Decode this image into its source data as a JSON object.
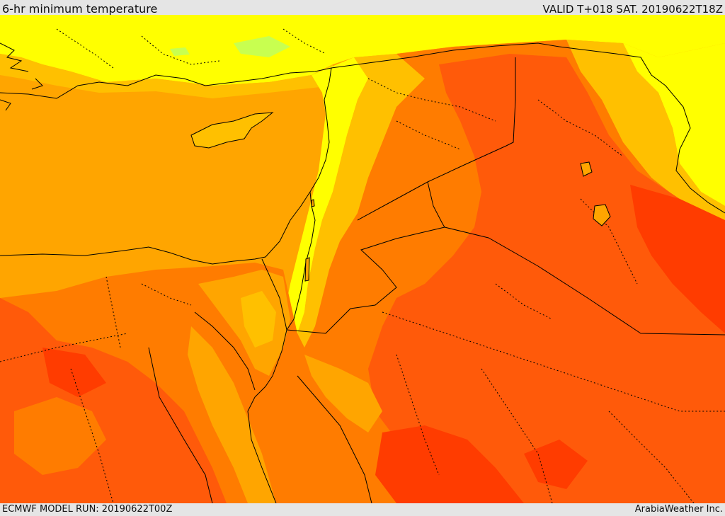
{
  "header": {
    "title": "6-hr minimum temperature",
    "valid": "VALID T+018 SAT. 20190622T18Z"
  },
  "footer": {
    "model_run": "ECMWF MODEL RUN: 20190622T00Z",
    "credit": "ArabiaWeather Inc."
  },
  "colors": {
    "deep_red": "#ff3c00",
    "red_orange": "#ff5a0a",
    "orange": "#ff7c00",
    "light_orange": "#ffa500",
    "amber": "#ffc000",
    "yellow": "#ffff00",
    "pale_yellow": "#ffff6a",
    "light_green": "#c8ff50",
    "border": "#000000"
  }
}
